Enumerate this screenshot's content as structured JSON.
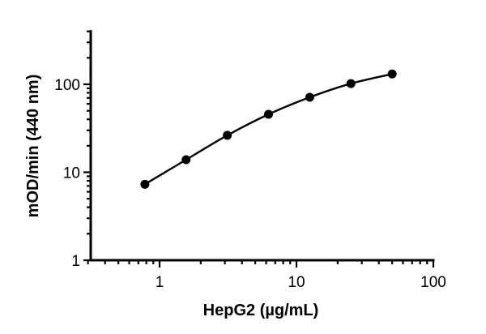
{
  "chart_data": {
    "type": "scatter",
    "title": "",
    "xlabel": "HepG2 (µg/mL)",
    "ylabel": "mOD/min (440 nm)",
    "xscale": "log",
    "yscale": "log",
    "xlim": [
      0.3,
      100
    ],
    "ylim": [
      1,
      400
    ],
    "x_ticks": [
      1,
      10,
      100
    ],
    "x_tick_labels": [
      "1",
      "10",
      "100"
    ],
    "y_ticks": [
      1,
      10,
      100
    ],
    "y_tick_labels": [
      "1",
      "10",
      "100"
    ],
    "grid": false,
    "legend": null,
    "series": [
      {
        "name": "HepG2",
        "marker": "circle",
        "color": "#000000",
        "fit_line": true,
        "x": [
          0.78125,
          1.5625,
          3.125,
          6.25,
          12.5,
          25,
          50
        ],
        "y": [
          7.3,
          13.9,
          26.3,
          45.6,
          71.2,
          102,
          131
        ]
      }
    ]
  },
  "labels": {
    "xlabel": "HepG2 (µg/mL)",
    "ylabel": "mOD/min (440 nm)"
  }
}
